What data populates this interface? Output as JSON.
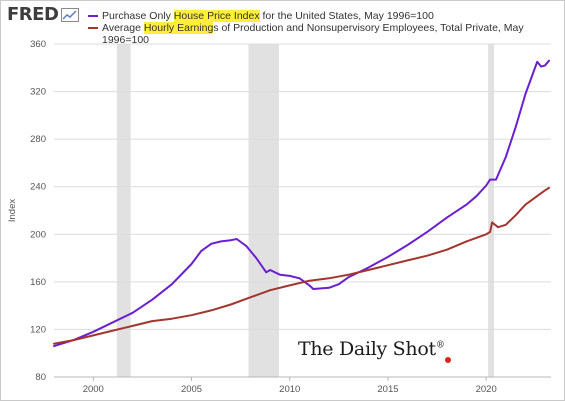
{
  "brand": {
    "logo_text": "FRED",
    "logo_icon": "chart-line-icon"
  },
  "legend": [
    {
      "pre": "Purchase Only ",
      "hl": "House Price Index",
      "post": " for the United States, May 1996=100",
      "color": "#6a1fd0"
    },
    {
      "pre": "Average ",
      "hl": "Hourly Earning",
      "post": "s of Production and Nonsupervisory Employees, Total Private, May 1996=100",
      "color": "#a1362e"
    }
  ],
  "watermark": {
    "text": "The Daily Shot",
    "mark": "®"
  },
  "colors": {
    "grid": "#dcdcdc",
    "recession": "#e1e1e1"
  },
  "chart_data": {
    "type": "line",
    "ylabel": "Index",
    "xlim": [
      1998.0,
      2023.3
    ],
    "ylim": [
      80,
      360
    ],
    "x_ticks": [
      2000,
      2005,
      2010,
      2015,
      2020
    ],
    "y_ticks": [
      80,
      120,
      160,
      200,
      240,
      280,
      320,
      360
    ],
    "grid": "horizontal",
    "legend_position": "top",
    "recessions": [
      [
        2001.2,
        2001.9
      ],
      [
        2007.9,
        2009.45
      ],
      [
        2020.1,
        2020.4
      ]
    ],
    "series": [
      {
        "name": "Purchase Only House Price Index for the United States, May 1996=100",
        "color": "#6a1fd0",
        "points": [
          [
            1998.0,
            106
          ],
          [
            1999.0,
            111
          ],
          [
            2000.0,
            118
          ],
          [
            2001.0,
            126
          ],
          [
            2002.0,
            134
          ],
          [
            2003.0,
            145
          ],
          [
            2004.0,
            158
          ],
          [
            2005.0,
            175
          ],
          [
            2005.5,
            186
          ],
          [
            2006.0,
            192
          ],
          [
            2006.5,
            194
          ],
          [
            2007.0,
            195
          ],
          [
            2007.3,
            196
          ],
          [
            2007.8,
            190
          ],
          [
            2008.3,
            180
          ],
          [
            2008.8,
            168
          ],
          [
            2009.0,
            170
          ],
          [
            2009.5,
            166
          ],
          [
            2010.0,
            165
          ],
          [
            2010.5,
            163
          ],
          [
            2011.0,
            157
          ],
          [
            2011.2,
            154
          ],
          [
            2012.0,
            155
          ],
          [
            2012.5,
            158
          ],
          [
            2013.0,
            164
          ],
          [
            2014.0,
            172
          ],
          [
            2015.0,
            181
          ],
          [
            2016.0,
            191
          ],
          [
            2017.0,
            202
          ],
          [
            2018.0,
            214
          ],
          [
            2019.0,
            225
          ],
          [
            2019.5,
            232
          ],
          [
            2020.0,
            241
          ],
          [
            2020.2,
            246
          ],
          [
            2020.5,
            246
          ],
          [
            2021.0,
            265
          ],
          [
            2021.5,
            290
          ],
          [
            2022.0,
            318
          ],
          [
            2022.4,
            336
          ],
          [
            2022.6,
            345
          ],
          [
            2022.8,
            341
          ],
          [
            2023.0,
            342
          ],
          [
            2023.2,
            346
          ]
        ]
      },
      {
        "name": "Average Hourly Earnings of Production and Nonsupervisory Employees, Total Private, May 1996=100",
        "color": "#a1362e",
        "points": [
          [
            1998.0,
            108
          ],
          [
            1999.0,
            111
          ],
          [
            2000.0,
            115
          ],
          [
            2001.0,
            119
          ],
          [
            2002.0,
            123
          ],
          [
            2003.0,
            127
          ],
          [
            2004.0,
            129
          ],
          [
            2005.0,
            132
          ],
          [
            2006.0,
            136
          ],
          [
            2007.0,
            141
          ],
          [
            2008.0,
            147
          ],
          [
            2009.0,
            153
          ],
          [
            2010.0,
            157
          ],
          [
            2011.0,
            161
          ],
          [
            2012.0,
            163
          ],
          [
            2013.0,
            166
          ],
          [
            2014.0,
            170
          ],
          [
            2015.0,
            174
          ],
          [
            2016.0,
            178
          ],
          [
            2017.0,
            182
          ],
          [
            2018.0,
            187
          ],
          [
            2019.0,
            194
          ],
          [
            2020.0,
            200
          ],
          [
            2020.2,
            202
          ],
          [
            2020.3,
            210
          ],
          [
            2020.6,
            206
          ],
          [
            2021.0,
            208
          ],
          [
            2021.5,
            216
          ],
          [
            2022.0,
            225
          ],
          [
            2022.5,
            231
          ],
          [
            2023.0,
            237
          ],
          [
            2023.2,
            239
          ]
        ]
      }
    ]
  }
}
